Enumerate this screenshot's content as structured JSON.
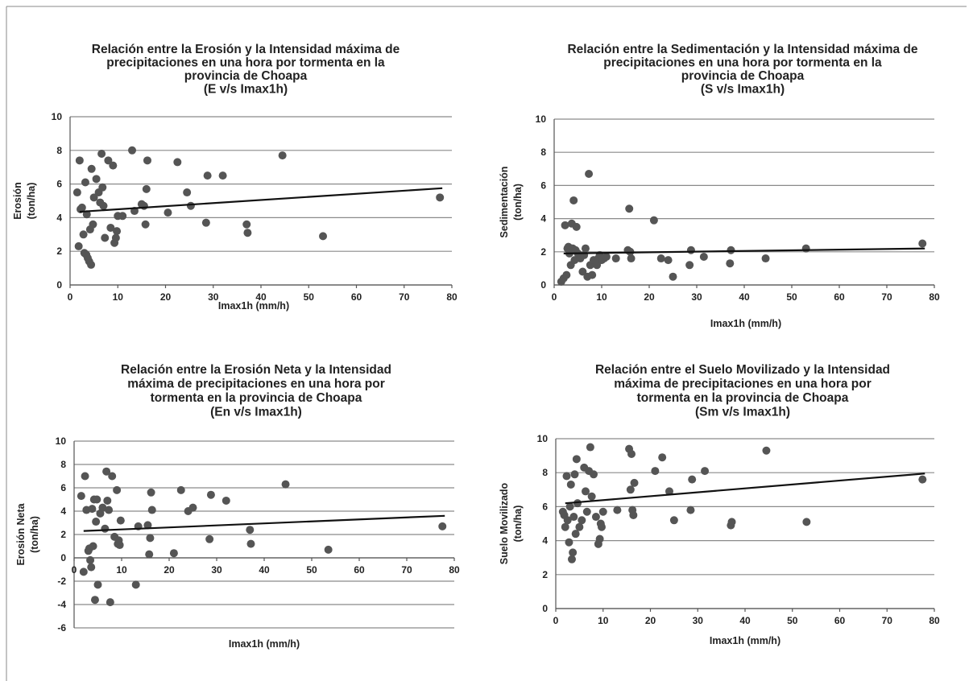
{
  "chart_data": [
    {
      "type": "scatter",
      "title_lines": [
        "Relación entre la Erosión y la Intensidad máxima de",
        "precipitaciones en una hora por tormenta en la",
        "provincia de Choapa",
        "(E v/s Imax1h)"
      ],
      "xlabel": "Imax1h (mm/h)",
      "ylabel_lines": [
        "Erosión",
        "(ton/ha)"
      ],
      "xlim": [
        0,
        80
      ],
      "ylim": [
        0,
        10
      ],
      "xticks": [
        "0",
        "10",
        "20",
        "30",
        "40",
        "50",
        "60",
        "70",
        "80"
      ],
      "yticks": [
        "0",
        "2",
        "4",
        "6",
        "8",
        "10"
      ],
      "grid": true,
      "trendline": [
        [
          2,
          4.35
        ],
        [
          78,
          5.75
        ]
      ],
      "points": [
        [
          1.5,
          5.5
        ],
        [
          1.8,
          2.3
        ],
        [
          2.0,
          7.4
        ],
        [
          2.2,
          4.5
        ],
        [
          2.5,
          4.6
        ],
        [
          2.8,
          3.0
        ],
        [
          3.0,
          1.9
        ],
        [
          3.2,
          6.1
        ],
        [
          3.4,
          1.8
        ],
        [
          3.5,
          4.2
        ],
        [
          3.7,
          1.6
        ],
        [
          4.0,
          1.4
        ],
        [
          4.2,
          3.3
        ],
        [
          4.4,
          1.2
        ],
        [
          4.5,
          6.9
        ],
        [
          4.8,
          3.6
        ],
        [
          5.0,
          5.2
        ],
        [
          5.5,
          6.3
        ],
        [
          6.0,
          5.5
        ],
        [
          6.3,
          4.9
        ],
        [
          6.6,
          7.8
        ],
        [
          6.8,
          5.8
        ],
        [
          7.0,
          4.7
        ],
        [
          7.3,
          2.8
        ],
        [
          8.0,
          7.4
        ],
        [
          8.5,
          3.4
        ],
        [
          9.0,
          7.1
        ],
        [
          9.3,
          2.5
        ],
        [
          9.6,
          2.8
        ],
        [
          9.8,
          3.2
        ],
        [
          10.0,
          4.1
        ],
        [
          11.0,
          4.1
        ],
        [
          13.0,
          8.0
        ],
        [
          13.5,
          4.4
        ],
        [
          15.0,
          4.8
        ],
        [
          15.5,
          4.7
        ],
        [
          15.8,
          3.6
        ],
        [
          16.0,
          5.7
        ],
        [
          16.2,
          7.4
        ],
        [
          20.5,
          4.3
        ],
        [
          22.5,
          7.3
        ],
        [
          24.5,
          5.5
        ],
        [
          25.3,
          4.7
        ],
        [
          28.5,
          3.7
        ],
        [
          28.8,
          6.5
        ],
        [
          32.0,
          6.5
        ],
        [
          37.0,
          3.6
        ],
        [
          37.2,
          3.1
        ],
        [
          44.5,
          7.7
        ],
        [
          53.0,
          2.9
        ],
        [
          77.5,
          5.2
        ]
      ]
    },
    {
      "type": "scatter",
      "title_lines": [
        "Relación entre la Sedimentación y la Intensidad máxima de",
        "precipitaciones en una hora por tormenta en la",
        "provincia de Choapa",
        "(S v/s Imax1h)"
      ],
      "xlabel": "Imax1h (mm/h)",
      "ylabel_lines": [
        "Sedimentación",
        "(ton/ha)"
      ],
      "xlim": [
        0,
        80
      ],
      "ylim": [
        0,
        10
      ],
      "xticks": [
        "0",
        "10",
        "20",
        "30",
        "40",
        "50",
        "60",
        "70",
        "80"
      ],
      "yticks": [
        "0",
        "2",
        "4",
        "6",
        "8",
        "10"
      ],
      "grid": true,
      "trendline": [
        [
          2,
          1.9
        ],
        [
          78,
          2.2
        ]
      ],
      "points": [
        [
          1.5,
          0.2
        ],
        [
          2.0,
          0.4
        ],
        [
          2.3,
          3.6
        ],
        [
          2.6,
          0.6
        ],
        [
          2.8,
          2.2
        ],
        [
          3.0,
          2.3
        ],
        [
          3.2,
          1.9
        ],
        [
          3.3,
          2.0
        ],
        [
          3.5,
          1.2
        ],
        [
          3.7,
          3.7
        ],
        [
          3.9,
          2.2
        ],
        [
          4.1,
          5.1
        ],
        [
          4.3,
          1.5
        ],
        [
          4.5,
          2.1
        ],
        [
          4.7,
          3.5
        ],
        [
          5.0,
          1.9
        ],
        [
          5.5,
          1.6
        ],
        [
          6.0,
          0.8
        ],
        [
          6.3,
          1.8
        ],
        [
          6.6,
          2.2
        ],
        [
          7.0,
          0.5
        ],
        [
          7.3,
          6.7
        ],
        [
          7.6,
          1.2
        ],
        [
          8.0,
          0.6
        ],
        [
          8.3,
          1.5
        ],
        [
          9.0,
          1.2
        ],
        [
          9.3,
          1.6
        ],
        [
          9.6,
          1.8
        ],
        [
          10.0,
          1.5
        ],
        [
          10.5,
          1.6
        ],
        [
          11.0,
          1.7
        ],
        [
          13.0,
          1.6
        ],
        [
          15.5,
          2.1
        ],
        [
          15.8,
          4.6
        ],
        [
          16.0,
          2.0
        ],
        [
          16.2,
          1.6
        ],
        [
          21.0,
          3.9
        ],
        [
          22.5,
          1.6
        ],
        [
          24.0,
          1.5
        ],
        [
          25.0,
          0.5
        ],
        [
          28.5,
          1.2
        ],
        [
          28.8,
          2.1
        ],
        [
          31.5,
          1.7
        ],
        [
          37.0,
          1.3
        ],
        [
          37.2,
          2.1
        ],
        [
          44.5,
          1.6
        ],
        [
          53.0,
          2.2
        ],
        [
          77.5,
          2.5
        ]
      ]
    },
    {
      "type": "scatter",
      "title_lines": [
        "Relación entre la Erosión Neta y la Intensidad",
        "máxima de precipitaciones en una hora por",
        "tormenta en la provincia de Choapa",
        "(En v/s Imax1h)"
      ],
      "xlabel": "Imax1h (mm/h)",
      "ylabel_lines": [
        "Erosión Neta",
        "(ton/ha)"
      ],
      "xlim": [
        0,
        80
      ],
      "ylim": [
        -6,
        10
      ],
      "xticks": [
        "0",
        "10",
        "20",
        "30",
        "40",
        "50",
        "60",
        "70",
        "80"
      ],
      "yticks": [
        "-6",
        "-4",
        "-2",
        "0",
        "2",
        "4",
        "6",
        "8",
        "10"
      ],
      "grid": true,
      "trendline": [
        [
          2,
          2.3
        ],
        [
          78,
          3.6
        ]
      ],
      "points": [
        [
          1.5,
          5.3
        ],
        [
          2.0,
          -1.2
        ],
        [
          2.3,
          7.0
        ],
        [
          2.6,
          4.1
        ],
        [
          3.0,
          0.6
        ],
        [
          3.2,
          0.8
        ],
        [
          3.4,
          -0.2
        ],
        [
          3.6,
          -0.8
        ],
        [
          3.8,
          4.2
        ],
        [
          4.0,
          1.0
        ],
        [
          4.2,
          5.0
        ],
        [
          4.4,
          -3.6
        ],
        [
          4.6,
          3.1
        ],
        [
          4.8,
          5.0
        ],
        [
          5.0,
          -2.3
        ],
        [
          5.5,
          3.8
        ],
        [
          6.0,
          4.3
        ],
        [
          6.5,
          2.5
        ],
        [
          6.8,
          7.4
        ],
        [
          7.0,
          4.9
        ],
        [
          7.3,
          4.1
        ],
        [
          7.6,
          -3.8
        ],
        [
          8.0,
          7.0
        ],
        [
          8.5,
          1.8
        ],
        [
          9.0,
          5.8
        ],
        [
          9.2,
          1.2
        ],
        [
          9.4,
          1.5
        ],
        [
          9.6,
          1.1
        ],
        [
          9.8,
          3.2
        ],
        [
          13.0,
          -2.3
        ],
        [
          13.5,
          2.7
        ],
        [
          15.5,
          2.8
        ],
        [
          15.8,
          0.3
        ],
        [
          16.0,
          1.7
        ],
        [
          16.2,
          5.6
        ],
        [
          16.4,
          4.1
        ],
        [
          21.0,
          0.4
        ],
        [
          22.5,
          5.8
        ],
        [
          24.0,
          4.0
        ],
        [
          25.0,
          4.3
        ],
        [
          28.5,
          1.6
        ],
        [
          28.8,
          5.4
        ],
        [
          32.0,
          4.9
        ],
        [
          37.0,
          2.4
        ],
        [
          37.2,
          1.2
        ],
        [
          44.5,
          6.3
        ],
        [
          53.5,
          0.7
        ],
        [
          77.5,
          2.7
        ]
      ]
    },
    {
      "type": "scatter",
      "title_lines": [
        "Relación entre el Suelo Movilizado y la Intensidad",
        "máxima de precipitaciones en una hora por",
        "tormenta en la provincia de Choapa",
        "(Sm v/s Imax1h)"
      ],
      "xlabel": "Imax1h (mm/h)",
      "ylabel_lines": [
        "Suelo Movilizado",
        "(ton/ha)"
      ],
      "xlim": [
        0,
        80
      ],
      "ylim": [
        0,
        10
      ],
      "xticks": [
        "0",
        "10",
        "20",
        "30",
        "40",
        "50",
        "60",
        "70",
        "80"
      ],
      "yticks": [
        "0",
        "2",
        "4",
        "6",
        "8",
        "10"
      ],
      "grid": true,
      "trendline": [
        [
          2,
          6.2
        ],
        [
          78,
          7.95
        ]
      ],
      "points": [
        [
          1.5,
          5.7
        ],
        [
          1.8,
          5.5
        ],
        [
          2.0,
          4.8
        ],
        [
          2.3,
          7.8
        ],
        [
          2.5,
          5.2
        ],
        [
          2.8,
          3.9
        ],
        [
          3.0,
          6.0
        ],
        [
          3.2,
          7.3
        ],
        [
          3.4,
          2.9
        ],
        [
          3.6,
          3.3
        ],
        [
          3.8,
          5.4
        ],
        [
          4.0,
          7.9
        ],
        [
          4.2,
          4.4
        ],
        [
          4.4,
          8.8
        ],
        [
          4.6,
          6.2
        ],
        [
          5.0,
          4.8
        ],
        [
          5.5,
          5.2
        ],
        [
          6.0,
          8.3
        ],
        [
          6.3,
          6.9
        ],
        [
          6.6,
          5.7
        ],
        [
          7.0,
          8.1
        ],
        [
          7.3,
          9.5
        ],
        [
          7.6,
          6.6
        ],
        [
          8.0,
          7.9
        ],
        [
          8.5,
          5.4
        ],
        [
          9.0,
          3.8
        ],
        [
          9.3,
          4.1
        ],
        [
          9.5,
          5.0
        ],
        [
          9.7,
          4.8
        ],
        [
          10.0,
          5.7
        ],
        [
          13.0,
          5.8
        ],
        [
          15.5,
          9.4
        ],
        [
          15.8,
          7.0
        ],
        [
          16.0,
          9.1
        ],
        [
          16.2,
          5.8
        ],
        [
          16.4,
          5.5
        ],
        [
          16.6,
          7.4
        ],
        [
          21.0,
          8.1
        ],
        [
          22.5,
          8.9
        ],
        [
          24.0,
          6.9
        ],
        [
          25.0,
          5.2
        ],
        [
          28.5,
          5.8
        ],
        [
          28.8,
          7.6
        ],
        [
          31.5,
          8.1
        ],
        [
          37.0,
          4.9
        ],
        [
          37.2,
          5.1
        ],
        [
          44.5,
          9.3
        ],
        [
          53.0,
          5.1
        ],
        [
          77.5,
          7.6
        ]
      ]
    }
  ]
}
